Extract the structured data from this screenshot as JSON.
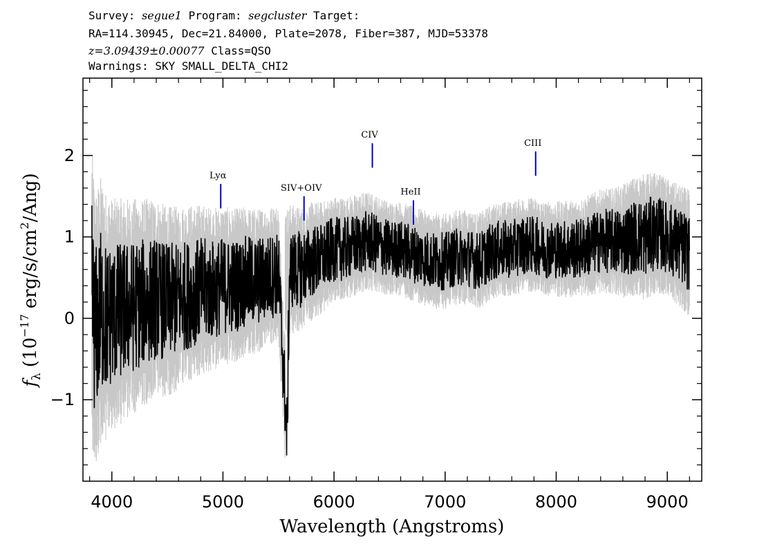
{
  "header": {
    "survey_label": "Survey:",
    "survey_value": "segue1",
    "program_label": "Program:",
    "program_value": "segcluster",
    "target_label": "Target:",
    "line2": "RA=114.30945, Dec=21.84000, Plate=2078, Fiber=387, MJD=53378",
    "redshift": "z=3.09439±0.00077",
    "class_text": "Class=QSO",
    "warnings": "Warnings: SKY SMALL_DELTA_CHI2"
  },
  "chart_data": {
    "type": "line",
    "xlabel": "Wavelength (Angstroms)",
    "ylabel_prefix": "f",
    "ylabel_sub": "λ",
    "ylabel_mid": "(10",
    "ylabel_exp": "−17",
    "ylabel_units": "erg/s/cm",
    "ylabel_sq": "2",
    "ylabel_end": "/Ang)",
    "xlim": [
      3740,
      9310
    ],
    "ylim": [
      -2.0,
      2.95
    ],
    "x_ticks": [
      4000,
      5000,
      6000,
      7000,
      8000,
      9000
    ],
    "x_tick_labels": [
      "4000",
      "5000",
      "6000",
      "7000",
      "8000",
      "9000"
    ],
    "y_ticks": [
      -1,
      0,
      1,
      2
    ],
    "y_tick_labels": [
      "−1",
      "0",
      "1",
      "2"
    ],
    "grid": false,
    "series": [
      {
        "role": "flux",
        "color": "#000000",
        "x": [
          3820,
          3850,
          3900,
          3950,
          4000,
          4100,
          4200,
          4300,
          4400,
          4500,
          4600,
          4700,
          4800,
          4900,
          5000,
          5100,
          5200,
          5300,
          5400,
          5500,
          5577,
          5600,
          5700,
          5800,
          5900,
          6000,
          6100,
          6200,
          6300,
          6400,
          6500,
          6600,
          6700,
          6800,
          6900,
          7000,
          7100,
          7200,
          7300,
          7400,
          7500,
          7600,
          7700,
          7800,
          7900,
          8000,
          8100,
          8200,
          8300,
          8400,
          8500,
          8600,
          8700,
          8800,
          8900,
          9000,
          9100,
          9200
        ],
        "y": [
          0.3,
          -0.2,
          0.1,
          0.0,
          0.05,
          0.1,
          0.15,
          0.2,
          0.25,
          0.2,
          0.25,
          0.3,
          0.35,
          0.35,
          0.4,
          0.4,
          0.45,
          0.45,
          0.5,
          0.55,
          -1.45,
          0.6,
          0.6,
          0.7,
          0.75,
          0.85,
          0.85,
          0.9,
          0.95,
          0.9,
          0.85,
          0.85,
          0.8,
          0.75,
          0.7,
          0.7,
          0.75,
          0.75,
          0.7,
          0.8,
          0.85,
          0.85,
          0.9,
          0.9,
          0.85,
          0.85,
          0.85,
          0.85,
          0.9,
          0.95,
          0.95,
          0.95,
          1.0,
          1.0,
          1.05,
          1.0,
          0.9,
          0.8
        ]
      },
      {
        "role": "error",
        "color": "#c8c8c8",
        "x": [
          3820,
          4000,
          4500,
          5000,
          5500,
          6000,
          6500,
          7000,
          7500,
          8000,
          8500,
          8800,
          9000,
          9200
        ],
        "y": [
          1.4,
          1.1,
          0.9,
          0.75,
          0.65,
          0.5,
          0.45,
          0.45,
          0.45,
          0.45,
          0.5,
          0.6,
          0.55,
          0.6
        ]
      }
    ],
    "annotations": [
      {
        "label": "Lyα",
        "x": 4980
      },
      {
        "label": "SIV+OIV",
        "x": 5730
      },
      {
        "label": "CIV",
        "x": 6345
      },
      {
        "label": "HeII",
        "x": 6715
      },
      {
        "label": "CIII",
        "x": 7815
      }
    ]
  }
}
